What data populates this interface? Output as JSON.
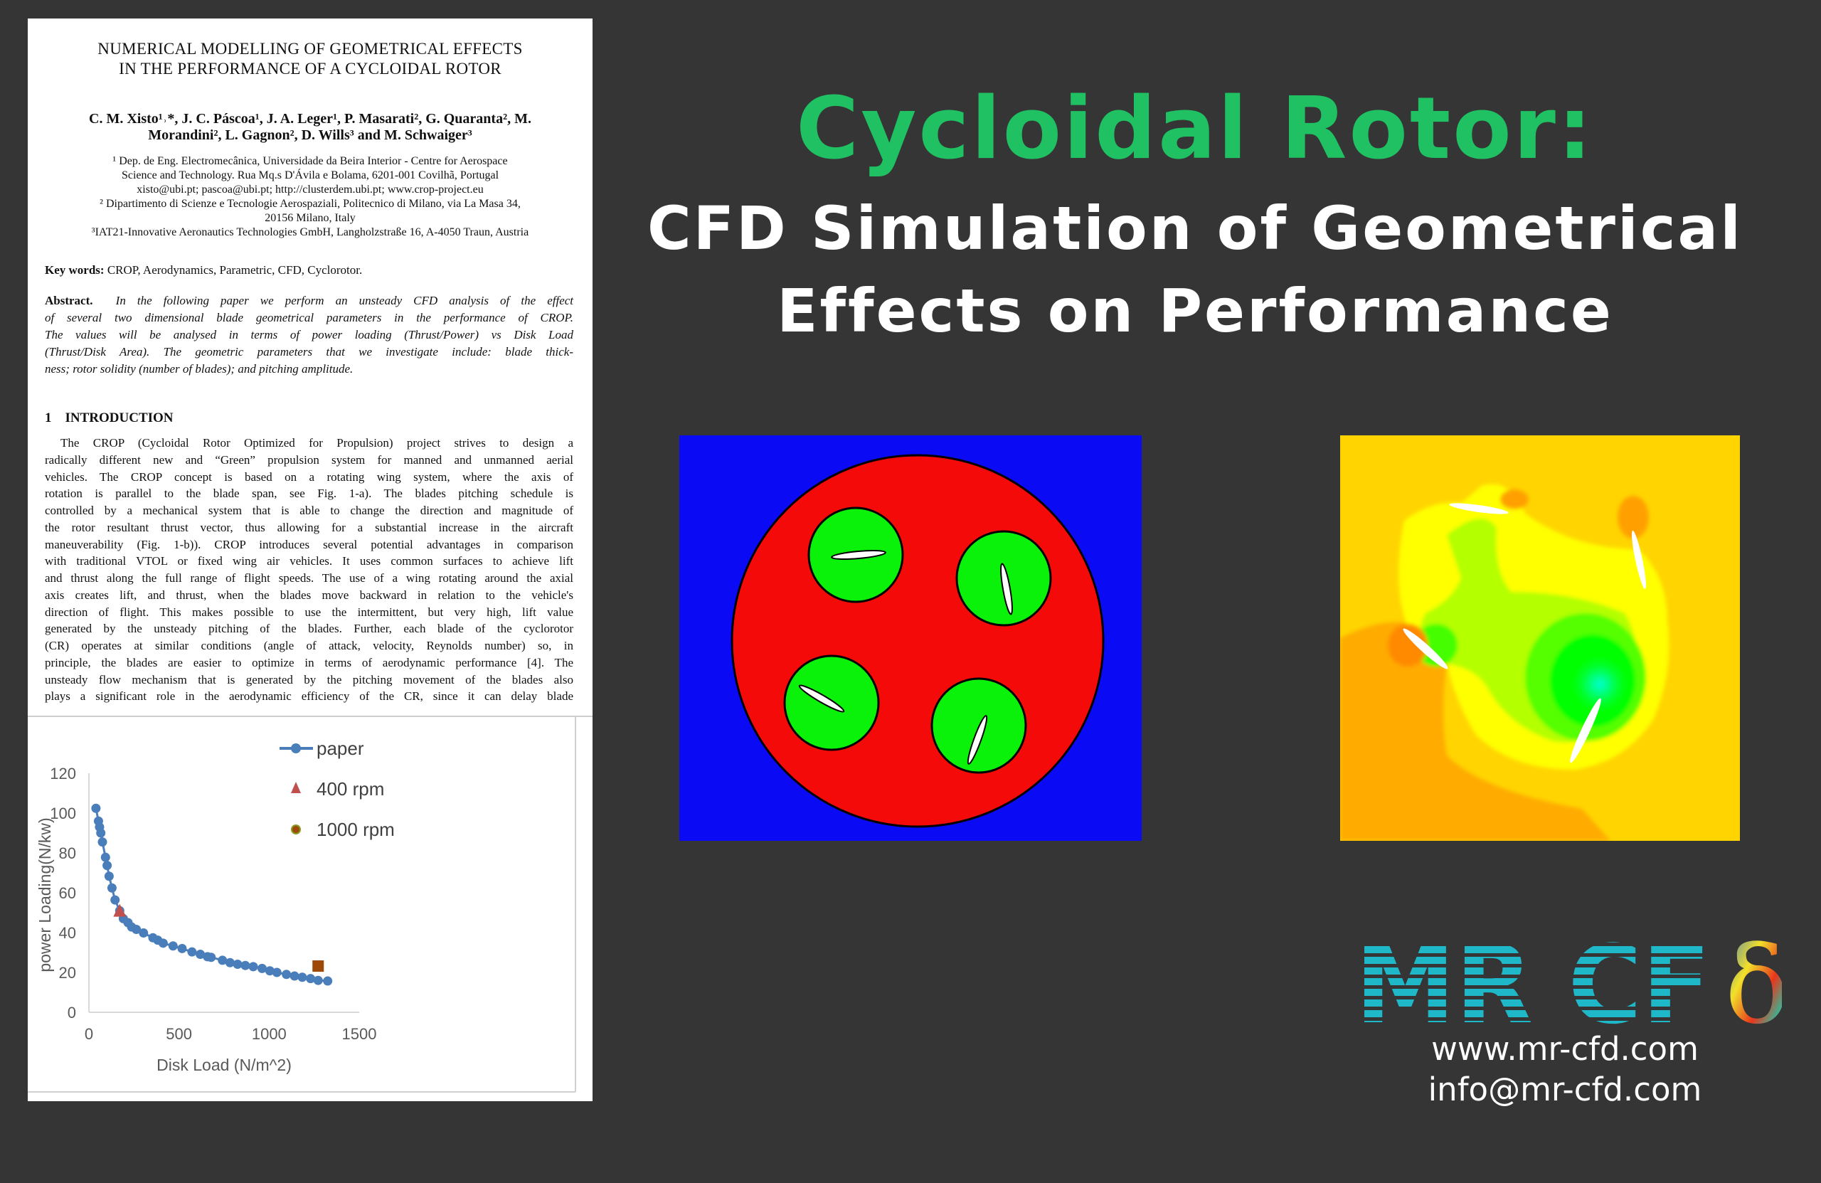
{
  "headline": {
    "title": "Cycloidal Rotor:",
    "subtitle_lines": [
      "CFD Simulation of Geometrical",
      "Effects on Performance"
    ],
    "title_color": "#1fc162"
  },
  "paper": {
    "title_lines": [
      "NUMERICAL MODELLING OF GEOMETRICAL EFFECTS",
      "IN THE PERFORMANCE OF A CYCLOIDAL ROTOR"
    ],
    "author_lines": [
      "C. M. Xisto¹˒*, J. C. Páscoa¹, J. A. Leger¹, P. Masarati², G. Quaranta², M.",
      "Morandini², L. Gagnon², D. Wills³ and M. Schwaiger³"
    ],
    "affiliation_lines": [
      "¹ Dep. de Eng. Electromecânica, Universidade da Beira Interior - Centre for Aerospace",
      "Science and Technology. Rua Mq.s D'Ávila e Bolama, 6201-001 Covilhã, Portugal",
      "xisto@ubi.pt; pascoa@ubi.pt; http://clusterdem.ubi.pt; www.crop-project.eu",
      "² Dipartimento di Scienze e Tecnologie Aerospaziali, Politecnico di Milano, via La Masa 34,",
      "20156 Milano, Italy",
      "³IAT21-Innovative Aeronautics Technologies GmbH, Langholzstraße 16, A-4050 Traun, Austria"
    ],
    "keywords_label": "Key words:",
    "keywords": "CROP, Aerodynamics, Parametric, CFD, Cyclorotor.",
    "abstract_label": "Abstract.",
    "abstract_lines": [
      "In the following paper we perform an unsteady CFD analysis of the effect",
      "of several two dimensional blade geometrical parameters in the performance of CROP.",
      "The values will be analysed in terms of power loading (Thrust/Power) vs Disk Load",
      "(Thrust/Disk Area). The geometric parameters that we investigate include: blade thick-",
      "ness; rotor solidity (number of blades); and pitching amplitude."
    ],
    "section_number": "1",
    "section_title": "INTRODUCTION",
    "intro_lines": [
      "The CROP (Cycloidal Rotor Optimized for Propulsion) project strives to design a",
      "radically different new and “Green” propulsion system for manned and unmanned aerial",
      "vehicles. The CROP concept is based on a rotating wing system, where the axis of",
      "rotation is parallel to the blade span, see Fig. 1-a). The blades pitching schedule is",
      "controlled by a mechanical system that is able to change the direction and magnitude of",
      "the rotor resultant thrust vector, thus allowing for a substantial increase in the aircraft",
      "maneuverability (Fig. 1-b)). CROP introduces several potential advantages in comparison",
      "with traditional VTOL or fixed wing air vehicles. It uses common surfaces to achieve lift",
      "and thrust along the full range of flight speeds. The use of a wing rotating around the axial",
      "axis creates lift, and thrust, when the blades move backward in relation to the vehicle's",
      "direction of flight. This makes possible to use the intermittent, but very high, lift value",
      "generated by the unsteady pitching of the blades. Further, each blade of the cyclorotor",
      "(CR) operates at similar conditions (angle of attack, velocity, Reynolds number) so, in",
      "principle, the blades are easier to optimize in terms of aerodynamic performance [4]. The",
      "unsteady flow mechanism that is generated by the pitching movement of the blades also",
      "plays a significant role in the aerodynamic efficiency of the CR, since it can delay blade"
    ]
  },
  "chart_data": {
    "type": "scatter",
    "xlabel": "Disk Load (N/m^2)",
    "ylabel": "power Loading(N/kw)",
    "xlim": [
      0,
      1500
    ],
    "ylim": [
      0,
      120
    ],
    "xticks": [
      "0",
      "500",
      "1000",
      "1500"
    ],
    "yticks": [
      "0",
      "20",
      "40",
      "60",
      "80",
      "100",
      "120"
    ],
    "grid": false,
    "legend_placement": "top-right",
    "series": [
      {
        "name": "paper",
        "marker": "circle-line",
        "color": "#4a7ebb",
        "x": [
          39,
          53,
          59,
          66,
          75,
          92,
          101,
          112,
          128,
          145,
          171,
          191,
          217,
          237,
          263,
          303,
          355,
          382,
          412,
          467,
          517,
          572,
          618,
          658,
          678,
          741,
          783,
          825,
          868,
          912,
          961,
          1004,
          1043,
          1096,
          1141,
          1184,
          1230,
          1272,
          1325
        ],
        "y": [
          102.4,
          96,
          93,
          90,
          85.5,
          77.8,
          73.7,
          68.3,
          62.4,
          56.4,
          51,
          47,
          45,
          42.8,
          41.6,
          39.8,
          37.4,
          36.2,
          34.7,
          33.3,
          32,
          30.3,
          29.1,
          27.9,
          27.6,
          26.1,
          24.9,
          24.1,
          23.5,
          22.9,
          22,
          20.8,
          20,
          19,
          18.2,
          17.6,
          16.9,
          16,
          15.7
        ]
      },
      {
        "name": "400 rpm",
        "marker": "triangle",
        "color": "#c0504d",
        "x": [
          171
        ],
        "y": [
          50.5
        ]
      },
      {
        "name": "1000 rpm",
        "marker": "square",
        "color": "#9c4a06",
        "x": [
          1272
        ],
        "y": [
          23.2
        ]
      }
    ]
  },
  "diagram": {
    "background_color": "#0a0af5",
    "rotor_color": "#f50a0a",
    "blade_region_color": "#0af20a"
  },
  "contour": {
    "colors": [
      "#ffd400",
      "#ffab00",
      "#ffff00",
      "#b4ff00",
      "#00ff00",
      "#00ffc8"
    ]
  },
  "logo": {
    "text": "MR CFD",
    "color": "#1fb8c9"
  },
  "contact": {
    "website": "www.mr-cfd.com",
    "email": "info@mr-cfd.com"
  }
}
